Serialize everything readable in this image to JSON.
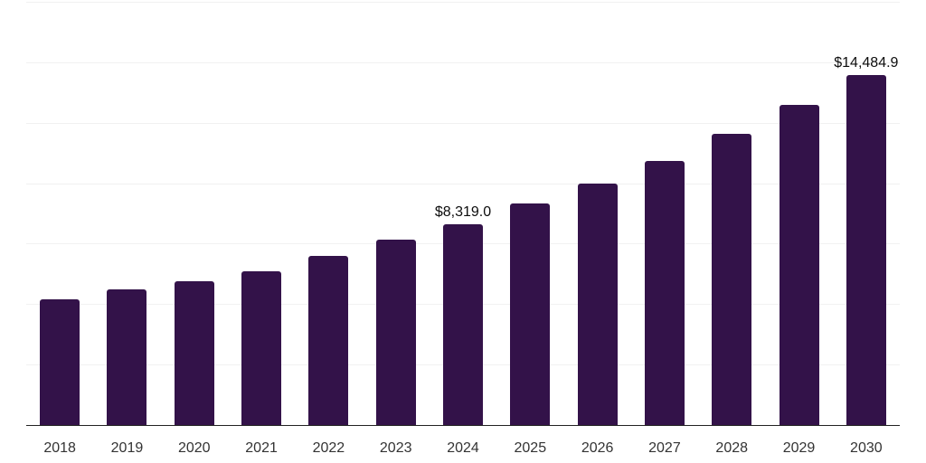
{
  "chart_data": {
    "type": "bar",
    "title": "",
    "xlabel": "",
    "ylabel": "",
    "categories": [
      "2018",
      "2019",
      "2020",
      "2021",
      "2022",
      "2023",
      "2024",
      "2025",
      "2026",
      "2027",
      "2028",
      "2029",
      "2030"
    ],
    "values": [
      5205,
      5610,
      5930,
      6355,
      6975,
      7670,
      8319.0,
      9155,
      9990,
      10925,
      12045,
      13255,
      14484.9
    ],
    "data_labels": [
      "",
      "",
      "",
      "",
      "",
      "",
      "$8,319.0",
      "",
      "",
      "",
      "",
      "",
      "$14,484.9"
    ],
    "ylim": [
      0,
      17500
    ],
    "grid_step": 2500,
    "grid": true,
    "legend": false,
    "colors": {
      "bar": "#331249",
      "gridline": "#f1f1f1",
      "axis_line": "#222222",
      "tick_label": "#333333",
      "data_label": "#0d0d0d",
      "background": "#ffffff"
    }
  }
}
